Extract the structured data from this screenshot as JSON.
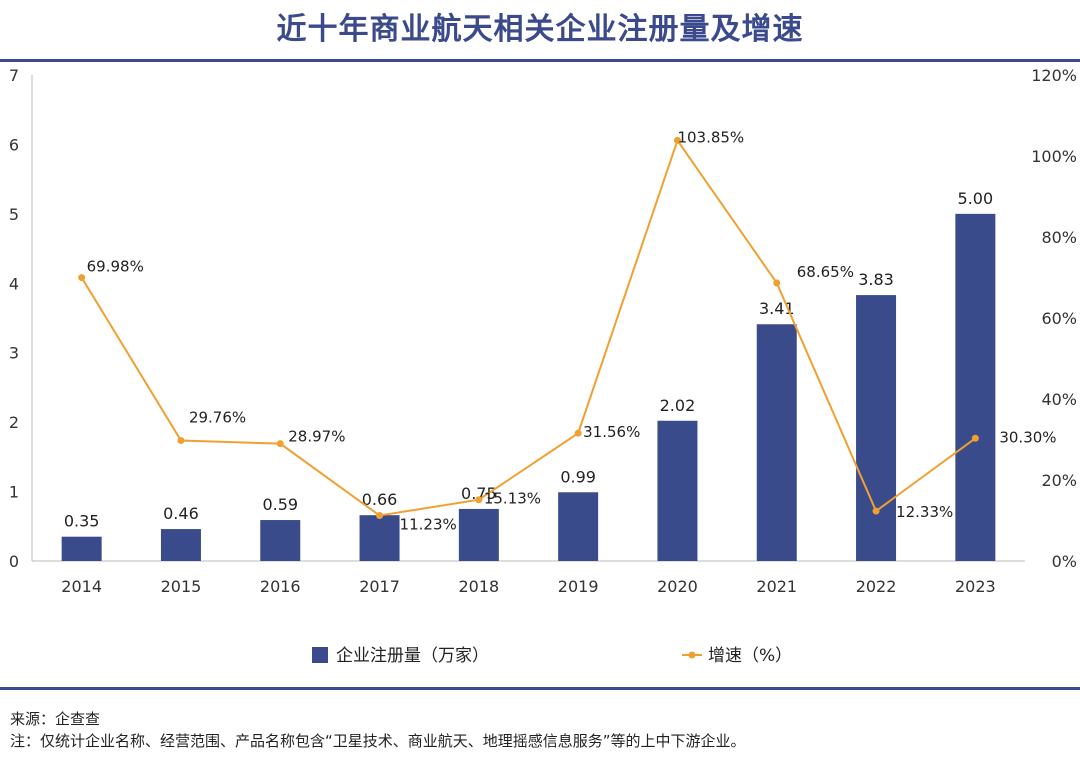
{
  "title": "近十年商业航天相关企业注册量及增速",
  "chart_data": {
    "type": "bar+line",
    "categories": [
      "2014",
      "2015",
      "2016",
      "2017",
      "2018",
      "2019",
      "2020",
      "2021",
      "2022",
      "2023"
    ],
    "series": [
      {
        "name": "企业注册量（万家）",
        "type": "bar",
        "axis": "left",
        "color": "#3a4b8c",
        "values": [
          0.35,
          0.46,
          0.59,
          0.66,
          0.75,
          0.99,
          2.02,
          3.41,
          3.83,
          5.0
        ],
        "labels": [
          "0.35",
          "0.46",
          "0.59",
          "0.66",
          "0.75",
          "0.99",
          "2.02",
          "3.41",
          "3.83",
          "5.00"
        ]
      },
      {
        "name": "增速（%）",
        "type": "line",
        "axis": "right",
        "color": "#f0a030",
        "values": [
          69.98,
          29.76,
          28.97,
          11.23,
          15.13,
          31.56,
          103.85,
          68.65,
          12.33,
          30.3
        ],
        "labels": [
          "69.98%",
          "29.76%",
          "28.97%",
          "11.23%",
          "15.13%",
          "31.56%",
          "103.85%",
          "68.65%",
          "12.33%",
          "30.30%"
        ]
      }
    ],
    "y_left": {
      "range": [
        0,
        7
      ],
      "ticks": [
        "0",
        "1",
        "2",
        "3",
        "4",
        "5",
        "6",
        "7"
      ]
    },
    "y_right": {
      "range": [
        0,
        120
      ],
      "ticks": [
        "0%",
        "20%",
        "40%",
        "60%",
        "80%",
        "100%",
        "120%"
      ]
    },
    "grid": false,
    "legend": "bottom"
  },
  "notes": {
    "source": "来源：企查查",
    "note": "注：仅统计企业名称、经营范围、产品名称包含“卫星技术、商业航天、地理摇感信息服务”等的上中下游企业。"
  }
}
